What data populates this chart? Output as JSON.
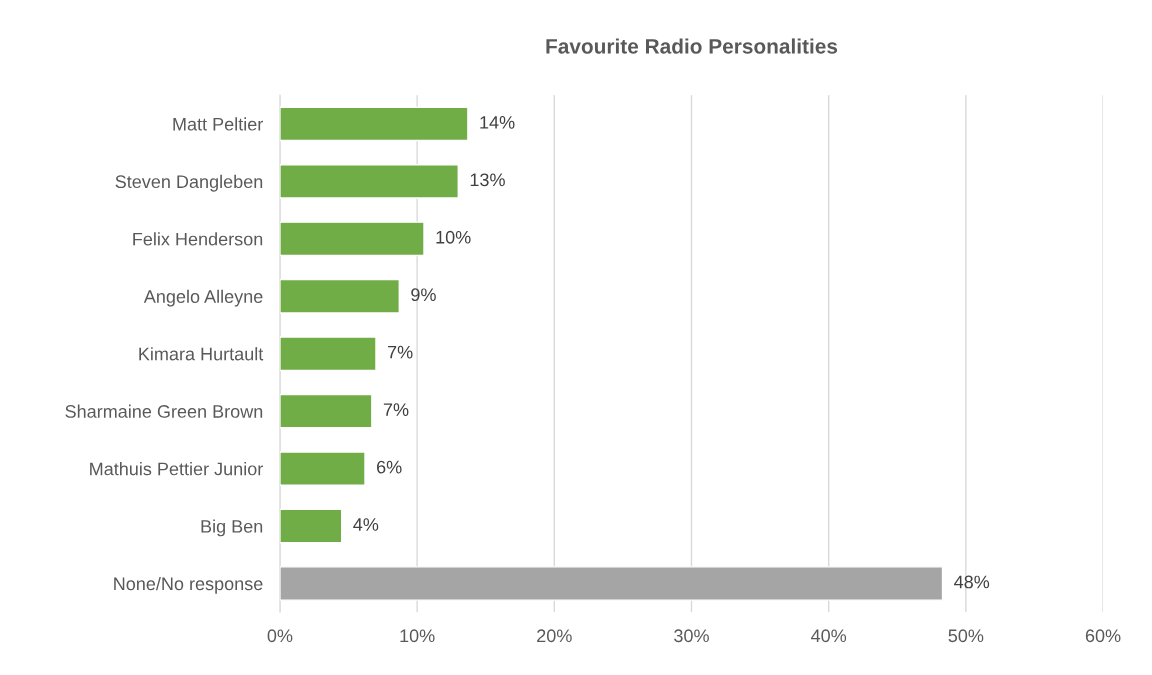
{
  "chart_data": {
    "type": "bar",
    "orientation": "horizontal",
    "title": "Favourite Radio Personalities",
    "categories": [
      "Matt Peltier",
      "Steven Dangleben",
      "Felix Henderson",
      "Angelo Alleyne",
      "Kimara Hurtault",
      "Sharmaine Green Brown",
      "Mathuis Pettier Junior",
      "Big Ben",
      "None/No response"
    ],
    "values": [
      13.7,
      13.0,
      10.5,
      8.7,
      7.0,
      6.7,
      6.2,
      4.5,
      48.3
    ],
    "value_labels": [
      "14%",
      "13%",
      "10%",
      "9%",
      "7%",
      "7%",
      "6%",
      "4%",
      "48%"
    ],
    "colors": [
      "#70ad47",
      "#70ad47",
      "#70ad47",
      "#70ad47",
      "#70ad47",
      "#70ad47",
      "#70ad47",
      "#70ad47",
      "#a5a5a5"
    ],
    "xlim": [
      0,
      60
    ],
    "xticks": [
      {
        "value": 0,
        "label": "0%"
      },
      {
        "value": 10,
        "label": "10%"
      },
      {
        "value": 20,
        "label": "20%"
      },
      {
        "value": 30,
        "label": "30%"
      },
      {
        "value": 40,
        "label": "40%"
      },
      {
        "value": 50,
        "label": "50%"
      },
      {
        "value": 60,
        "label": "60%"
      }
    ],
    "grid": "x",
    "legend": false
  }
}
